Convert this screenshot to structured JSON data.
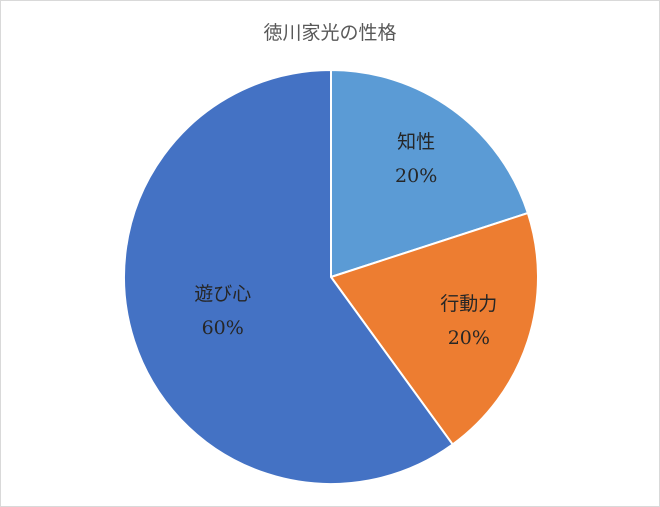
{
  "chart_data": {
    "type": "pie",
    "title": "徳川家光の性格",
    "categories": [
      "知性",
      "行動力",
      "遊び心"
    ],
    "values": [
      20,
      20,
      60
    ],
    "value_labels": [
      "20%",
      "20%",
      "60%"
    ],
    "colors": [
      "#5b9bd5",
      "#ed7d31",
      "#4472c4"
    ]
  }
}
